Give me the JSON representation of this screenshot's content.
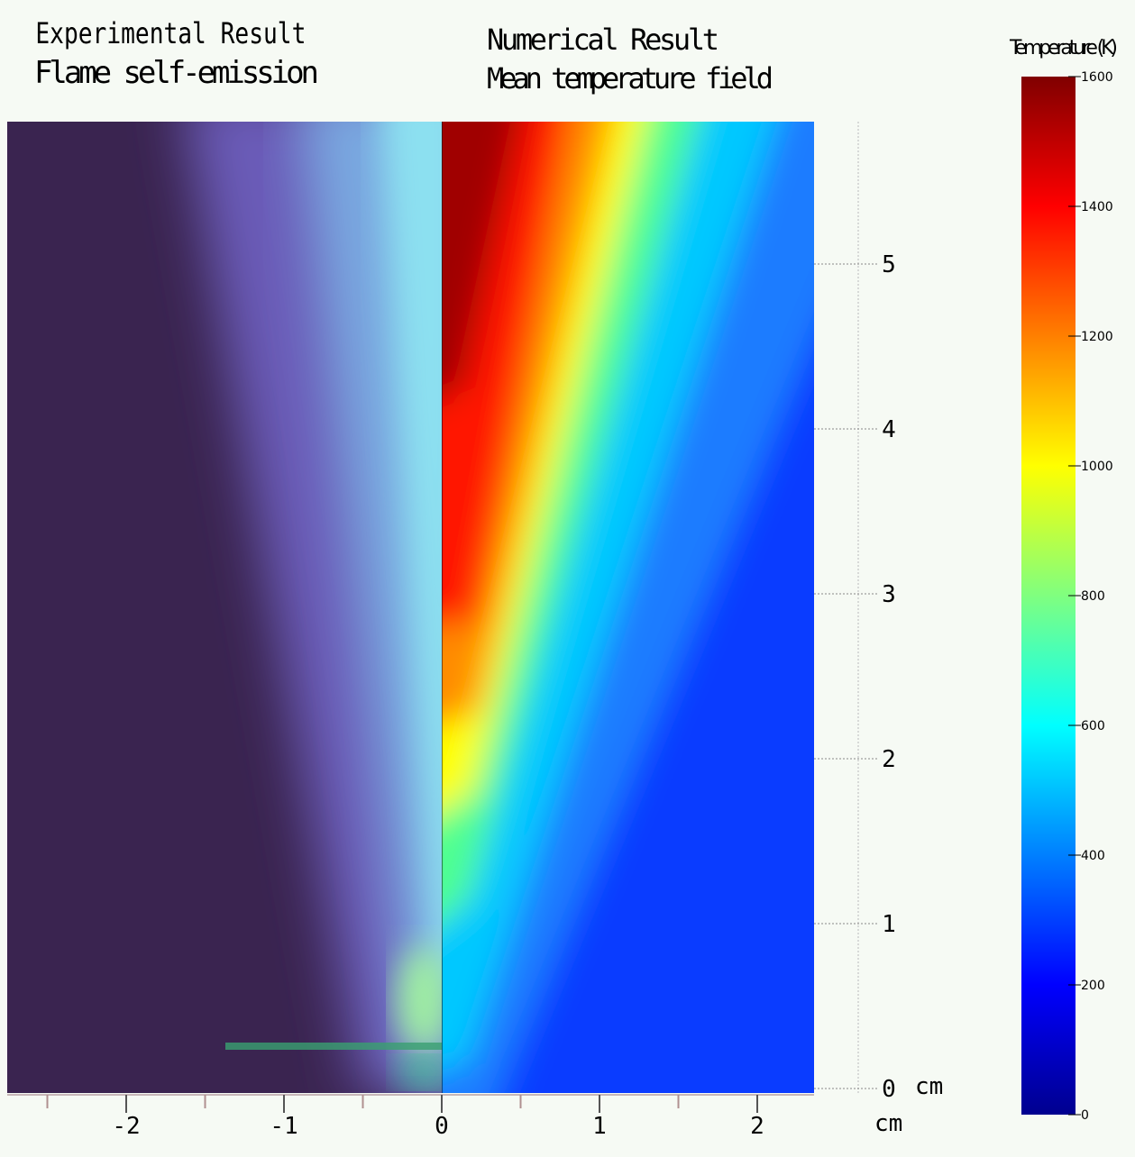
{
  "titles": {
    "left": [
      "Experimental Result",
      "Flame self-emission"
    ],
    "right": [
      "Numerical Result",
      "Mean temperature field"
    ]
  },
  "x_axis": {
    "ticks": [
      -2,
      -1,
      0,
      1,
      2
    ],
    "unit": "cm"
  },
  "y_axis": {
    "ticks": [
      0,
      1,
      2,
      3,
      4,
      5
    ],
    "unit": "cm"
  },
  "colorbar": {
    "title": "Temperature (K)",
    "ticks": [
      0,
      200,
      400,
      600,
      800,
      1000,
      1200,
      1400,
      1600
    ]
  }
}
